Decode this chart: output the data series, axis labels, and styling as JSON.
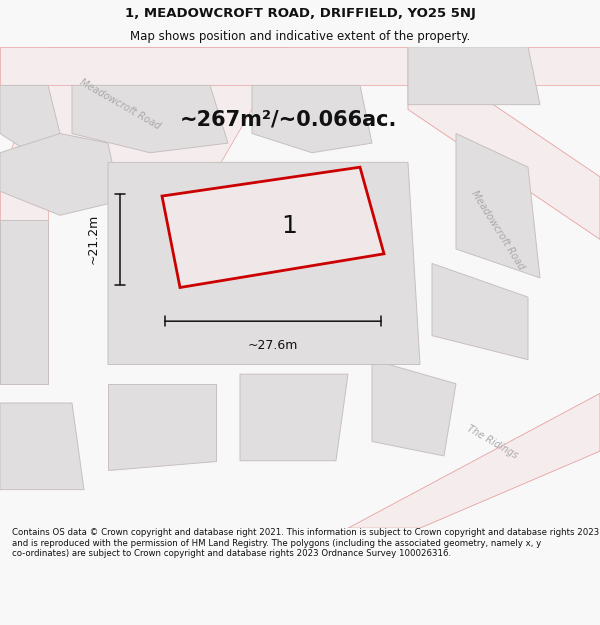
{
  "title_line1": "1, MEADOWCROFT ROAD, DRIFFIELD, YO25 5NJ",
  "title_line2": "Map shows position and indicative extent of the property.",
  "area_text": "~267m²/~0.066ac.",
  "label_number": "1",
  "dim_width": "~27.6m",
  "dim_height": "~21.2m",
  "footer_text": "Contains OS data © Crown copyright and database right 2021. This information is subject to Crown copyright and database rights 2023 and is reproduced with the permission of HM Land Registry. The polygons (including the associated geometry, namely x, y co-ordinates) are subject to Crown copyright and database rights 2023 Ordnance Survey 100026316.",
  "bg_color": "#f8f8f8",
  "map_bg": "#efefef",
  "road_fill": "#f5eded",
  "road_edge": "#e8a0a0",
  "block_fill": "#e0dede",
  "block_edge": "#c8c0c0",
  "plot_stroke": "#cc0000",
  "plot_fill": "#f0e8e8",
  "dim_color": "#111111",
  "road_label_color": "#aaaaaa",
  "title_color": "#111111",
  "footer_color": "#111111",
  "title_fontsize": 9.5,
  "subtitle_fontsize": 8.5,
  "area_fontsize": 15,
  "label_fontsize": 18,
  "dim_fontsize": 9,
  "road_label_fontsize": 7
}
